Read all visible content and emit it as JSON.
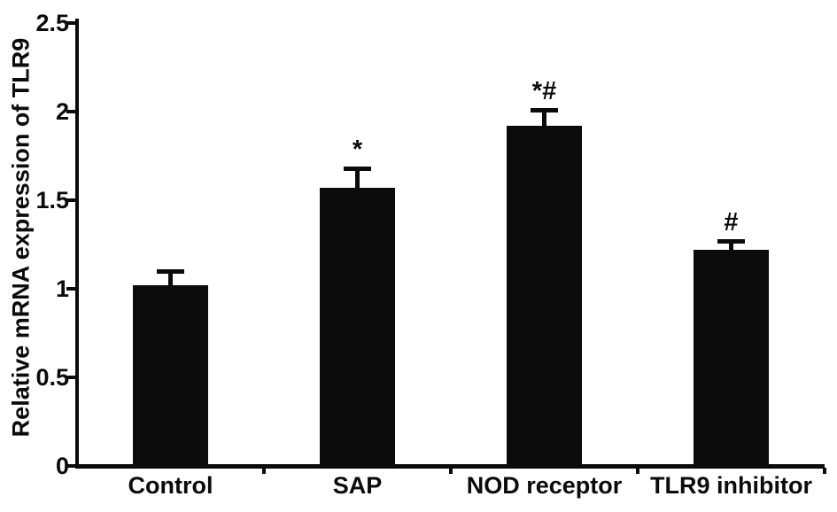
{
  "chart_data": {
    "type": "bar",
    "title": "",
    "xlabel": "",
    "ylabel": "Relative mRNA expression of TLR9",
    "ylim": [
      0,
      2.5
    ],
    "yticks": [
      0,
      0.5,
      1,
      1.5,
      2,
      2.5
    ],
    "ytick_labels": [
      "0",
      "0.5",
      "1",
      "1.5",
      "2",
      "2.5"
    ],
    "categories": [
      "Control",
      "SAP",
      "NOD receptor",
      "TLR9 inhibitor"
    ],
    "values": [
      1.02,
      1.57,
      1.92,
      1.22
    ],
    "errors": [
      0.09,
      0.12,
      0.1,
      0.06
    ],
    "error_direction": "upper",
    "significance_labels": [
      "",
      "*",
      "*#",
      "#"
    ],
    "bar_color": "#0b0b0b",
    "axis_color": "#0b0b0b",
    "background_color": "#ffffff",
    "grid": false,
    "legend_position": "none"
  }
}
